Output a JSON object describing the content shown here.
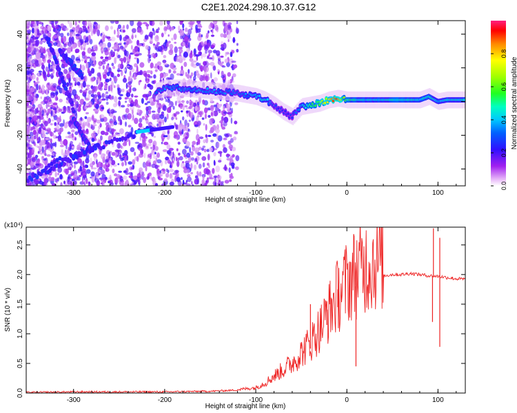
{
  "title": "C2E1.2024.298.10.37.G12",
  "chart_data": [
    {
      "type": "heatmap",
      "xlabel": "Height of straight line (km)",
      "ylabel": "Frequency (Hz)",
      "xlim": [
        -352,
        130
      ],
      "ylim": [
        -50,
        48
      ],
      "x_ticks": [
        "-300",
        "-200",
        "-100",
        "0",
        "100"
      ],
      "y_ticks": [
        "-40",
        "-20",
        "0",
        "20",
        "40"
      ],
      "colorbar": {
        "label": "Normalized spectral amplitude",
        "range": [
          0,
          1
        ],
        "ticks": [
          "0.0",
          "0.2",
          "0.4",
          "0.6",
          "0.8"
        ]
      },
      "ridge": {
        "x": [
          -210,
          -200,
          -180,
          -160,
          -140,
          -120,
          -100,
          -90,
          -80,
          -70,
          -60,
          -50,
          -40,
          -30,
          -20,
          -10,
          0,
          20,
          40,
          60,
          80,
          90,
          100,
          110,
          120,
          130
        ],
        "freq": [
          6,
          8,
          8,
          7,
          6,
          5,
          3,
          1,
          -2,
          -6,
          -9,
          -3,
          -2,
          -1,
          1,
          2,
          1,
          1,
          1,
          1,
          1,
          3,
          0,
          1,
          1,
          1
        ],
        "amplitude": [
          0.35,
          0.4,
          0.4,
          0.4,
          0.4,
          0.35,
          0.45,
          0.5,
          0.3,
          0.3,
          0.3,
          0.45,
          0.6,
          0.7,
          0.85,
          0.9,
          0.6,
          0.5,
          0.5,
          0.55,
          0.5,
          0.55,
          0.45,
          0.5,
          0.5,
          0.5
        ]
      },
      "noise_region_x": [
        -352,
        -140
      ]
    },
    {
      "type": "line",
      "xlabel": "Height of straight line (km)",
      "ylabel": "SNR (10 * v/v)",
      "y_scale_note": "(x10⁴)",
      "xlim": [
        -352,
        130
      ],
      "ylim": [
        0,
        2.8
      ],
      "x_ticks": [
        "-300",
        "-200",
        "-100",
        "0",
        "100"
      ],
      "y_ticks": [
        "0.0",
        "0.5",
        "1.0",
        "1.5",
        "2.0",
        "2.5"
      ],
      "color": "#ee2222",
      "series": [
        {
          "x": [
            -352,
            -300,
            -250,
            -200,
            -150,
            -120,
            -100,
            -90,
            -80,
            -70,
            -60,
            -50,
            -40,
            -30,
            -20,
            -10,
            0,
            10,
            20,
            30,
            40,
            50,
            60,
            70,
            80,
            90,
            100,
            110,
            120,
            130
          ],
          "values": [
            0.01,
            0.02,
            0.02,
            0.02,
            0.03,
            0.05,
            0.08,
            0.15,
            0.25,
            0.35,
            0.45,
            0.6,
            0.75,
            0.95,
            1.2,
            1.45,
            1.65,
            1.8,
            1.9,
            1.95,
            1.98,
            2.0,
            2.0,
            2.02,
            2.0,
            1.98,
            1.97,
            1.95,
            1.93,
            1.92
          ]
        }
      ],
      "spikes": [
        {
          "x": -40,
          "value": 1.5
        },
        {
          "x": -22,
          "value": 1.55
        },
        {
          "x": -10,
          "value": 1.75
        },
        {
          "x": 10,
          "value": 0.45
        },
        {
          "x": 95,
          "value": 2.78
        },
        {
          "x": 94,
          "value": 1.2
        },
        {
          "x": 102,
          "value": 2.62
        },
        {
          "x": 102,
          "value": 0.78
        }
      ]
    }
  ]
}
